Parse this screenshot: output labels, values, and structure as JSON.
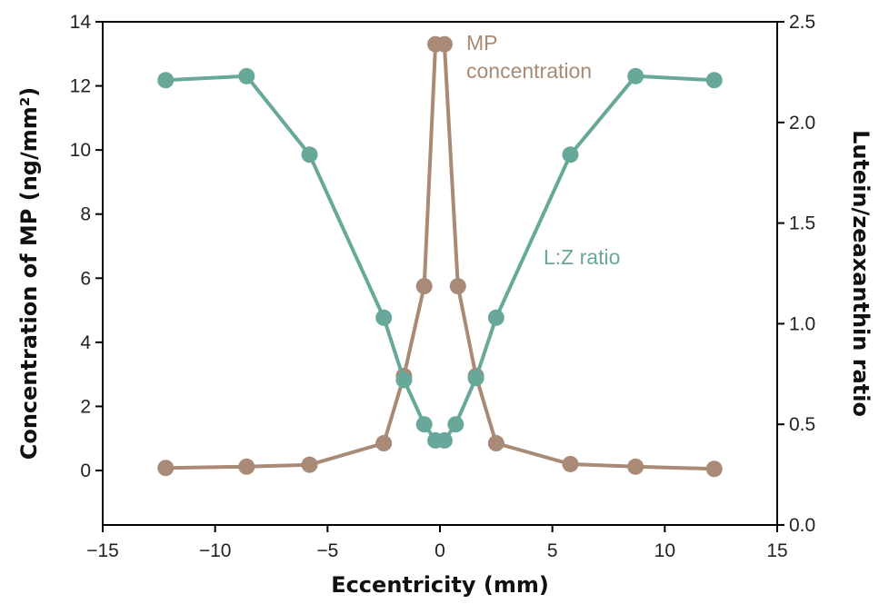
{
  "chart_data": {
    "type": "line",
    "title": "",
    "xlabel": "Eccentricity (mm)",
    "ylabel_left": "Concentration of MP (ng/mm²)",
    "ylabel_right": "Lutein/zeaxanthin ratio",
    "xlim": [
      -15,
      15
    ],
    "ylim_left": [
      -1.7,
      14
    ],
    "ylim_right": [
      0,
      2.5
    ],
    "x_ticks": [
      "−15",
      "−10",
      "−5",
      "0",
      "5",
      "10",
      "15"
    ],
    "x_tick_values": [
      -15,
      -10,
      -5,
      0,
      5,
      10,
      15
    ],
    "y_left_ticks": [
      "0",
      "2",
      "4",
      "6",
      "8",
      "10",
      "12",
      "14"
    ],
    "y_left_tick_values": [
      0,
      2,
      4,
      6,
      8,
      10,
      12,
      14
    ],
    "y_right_ticks": [
      "0.0",
      "0.5",
      "1.0",
      "1.5",
      "2.0",
      "2.5"
    ],
    "y_right_tick_values": [
      0,
      0.5,
      1.0,
      1.5,
      2.0,
      2.5
    ],
    "grid": false,
    "series": [
      {
        "name_line1": "MP",
        "name_line2": "concentration",
        "axis": "left",
        "color": "#a88a76",
        "x": [
          -12.2,
          -8.6,
          -5.8,
          -2.5,
          -1.6,
          -0.7,
          -0.2,
          0.2,
          0.8,
          1.6,
          2.5,
          5.8,
          8.7,
          12.2
        ],
        "y": [
          0.08,
          0.12,
          0.18,
          0.85,
          2.95,
          5.75,
          13.3,
          13.3,
          5.75,
          2.95,
          0.85,
          0.2,
          0.12,
          0.05
        ]
      },
      {
        "name": "L:Z ratio",
        "axis": "right",
        "color": "#68a89a",
        "x": [
          -12.2,
          -8.6,
          -5.8,
          -2.5,
          -1.6,
          -0.7,
          -0.2,
          0.2,
          0.7,
          1.6,
          2.5,
          5.8,
          8.7,
          12.2
        ],
        "y": [
          2.21,
          2.23,
          1.84,
          1.03,
          0.72,
          0.5,
          0.42,
          0.42,
          0.5,
          0.73,
          1.03,
          1.84,
          2.23,
          2.21
        ]
      }
    ]
  }
}
